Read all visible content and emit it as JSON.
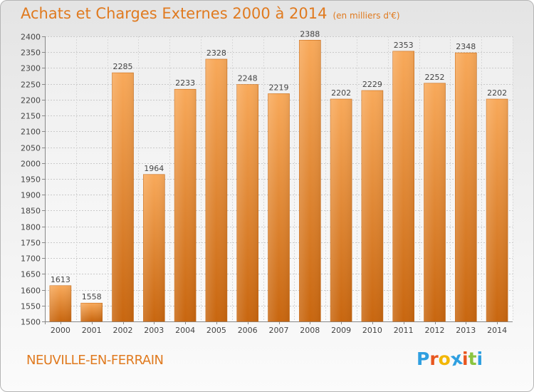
{
  "header": {
    "title": "Achats et Charges Externes 2000 à 2014",
    "unit": "(en milliers d'€)"
  },
  "footer": {
    "city": "NEUVILLE-EN-FERRAIN",
    "logo": "Proxiti"
  },
  "colors": {
    "accent": "#e07a1f",
    "bar_top": "#f8a95a",
    "bar_bottom": "#c8660f",
    "logo_letters": [
      "#2f9fe0",
      "#e8561f",
      "#f2b707",
      "#2f9fe0",
      "#e8561f",
      "#8ac43f",
      "#2f9fe0"
    ]
  },
  "chart_data": {
    "type": "bar",
    "title": "Achats et Charges Externes 2000 à 2014",
    "subtitle": "(en milliers d'€)",
    "categories": [
      "2000",
      "2001",
      "2002",
      "2003",
      "2004",
      "2005",
      "2006",
      "2007",
      "2008",
      "2009",
      "2010",
      "2011",
      "2012",
      "2013",
      "2014"
    ],
    "values": [
      1613,
      1558,
      2285,
      1964,
      2233,
      2328,
      2248,
      2219,
      2388,
      2202,
      2229,
      2353,
      2252,
      2348,
      2202
    ],
    "ylim": [
      1500,
      2400
    ],
    "yticks": [
      1500,
      1550,
      1600,
      1650,
      1700,
      1750,
      1800,
      1850,
      1900,
      1950,
      2000,
      2050,
      2100,
      2150,
      2200,
      2250,
      2300,
      2350,
      2400
    ],
    "grid": true,
    "xlabel": "",
    "ylabel": ""
  }
}
